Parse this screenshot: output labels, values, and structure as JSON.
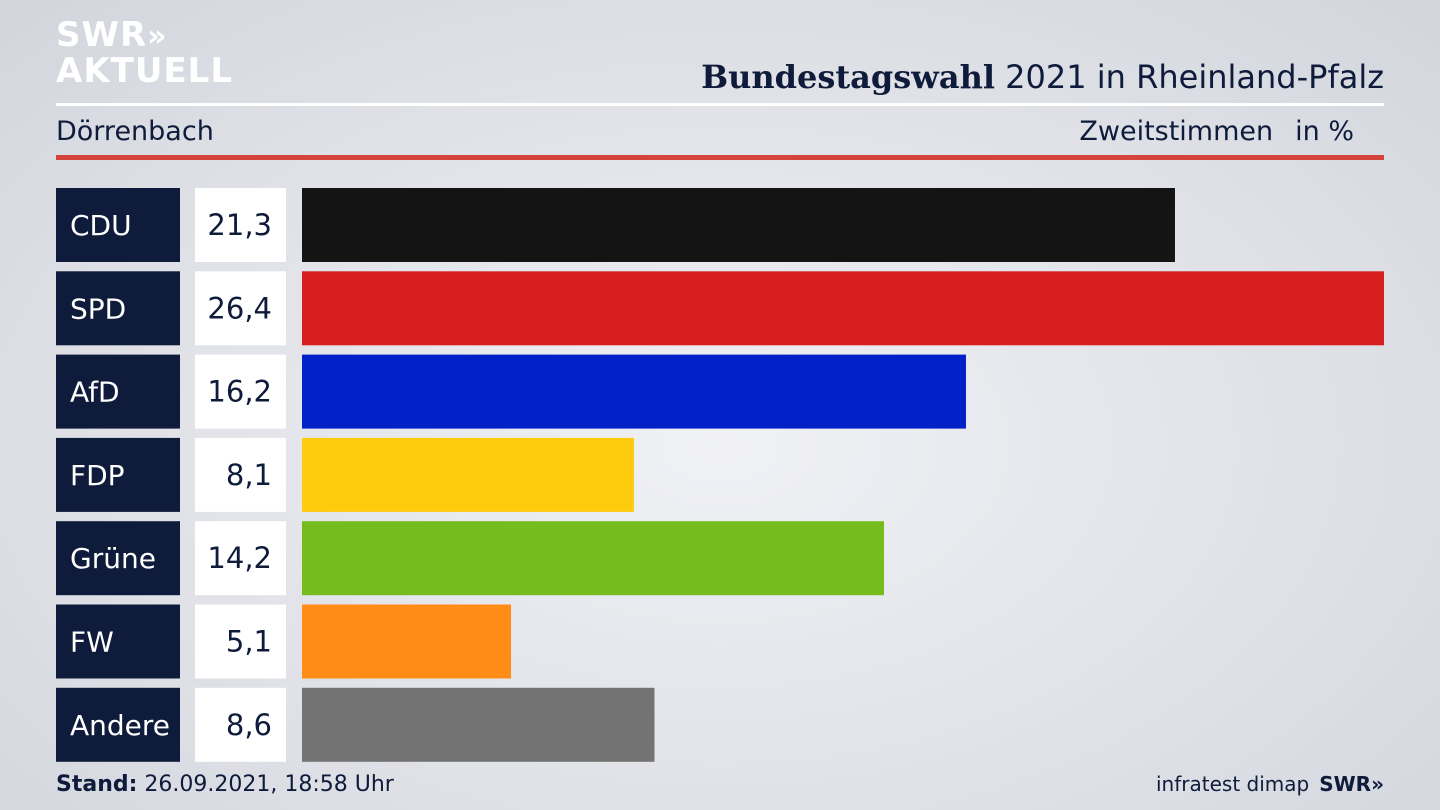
{
  "brand": {
    "logo_line1": "SWR",
    "logo_chevrons": "»",
    "logo_line2": "AKTUELL"
  },
  "header": {
    "title_bold": "Bundestagswahl",
    "title_rest": " 2021 in Rheinland-Pfalz",
    "location": "Dörrenbach",
    "measure": "Zweitstimmen",
    "unit": "in %"
  },
  "chart_data": {
    "type": "bar",
    "orientation": "horizontal",
    "categories": [
      "CDU",
      "SPD",
      "AfD",
      "FDP",
      "Grüne",
      "FW",
      "Andere"
    ],
    "values": [
      21.3,
      26.4,
      16.2,
      8.1,
      14.2,
      5.1,
      8.6
    ],
    "value_labels": [
      "21,3",
      "26,4",
      "16,2",
      "8,1",
      "14,2",
      "5,1",
      "8,6"
    ],
    "colors": [
      "#141414",
      "#d81f1f",
      "#0021c8",
      "#fecc0c",
      "#77bc1f",
      "#ff8c16",
      "#737373"
    ],
    "xlim": [
      0,
      26.4
    ],
    "grid": false,
    "legend": "none"
  },
  "footer": {
    "stand_label": "Stand:",
    "stand_value": " 26.09.2021, 18:58 Uhr",
    "source": "infratest dimap",
    "brand": "SWR»"
  }
}
